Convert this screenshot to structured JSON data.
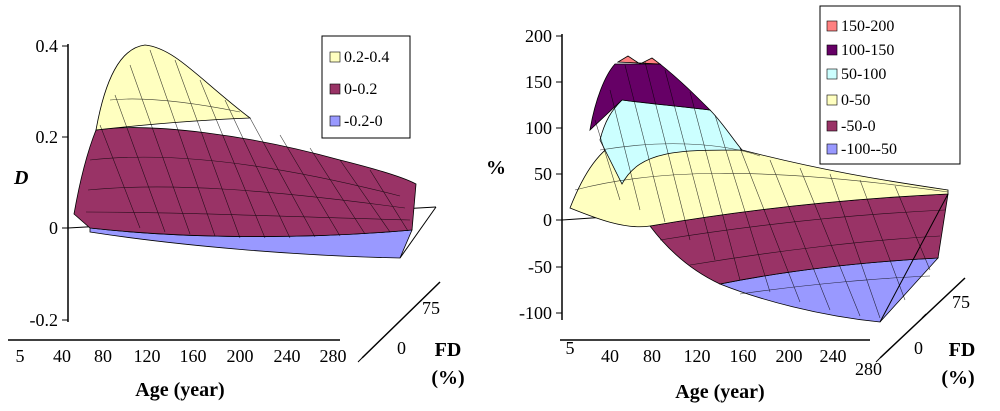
{
  "chart_data": [
    {
      "type": "surface",
      "title": "",
      "zlabel": "D",
      "xlabel": "Age (year)",
      "ylabel": "FD",
      "ylabel_unit": "(%)",
      "zlim": [
        -0.2,
        0.4
      ],
      "z_ticks": [
        "0.4",
        "0.2",
        "0",
        "-0.2"
      ],
      "x_ticks": [
        "5",
        "40",
        "80",
        "120",
        "160",
        "200",
        "240",
        "280"
      ],
      "y_ticks": [
        "0",
        "75"
      ],
      "legend": {
        "position": "top-right",
        "entries": [
          {
            "label": "0.2-0.4",
            "color": "#ffffc0"
          },
          {
            "label": "0-0.2",
            "color": "#993366"
          },
          {
            "label": "-0.2-0",
            "color": "#9999ff"
          }
        ]
      },
      "series": [
        {
          "x": [
            5,
            40,
            80,
            120,
            160,
            200,
            240,
            280
          ],
          "values": [
            0.02,
            0.34,
            0.4,
            0.32,
            0.26,
            0.2,
            0.15,
            0.1
          ]
        },
        {
          "x": [
            5,
            40,
            80,
            120,
            160,
            200,
            240,
            280
          ],
          "values": [
            0.0,
            0.02,
            0.01,
            -0.01,
            -0.02,
            -0.03,
            -0.03,
            -0.04
          ]
        }
      ]
    },
    {
      "type": "surface",
      "title": "",
      "zlabel": "%",
      "xlabel": "Age (year)",
      "ylabel": "FD",
      "ylabel_unit": "(%)",
      "zlim": [
        -100,
        200
      ],
      "z_ticks": [
        "200",
        "150",
        "100",
        "50",
        "0",
        "-50",
        "-100"
      ],
      "x_ticks": [
        "5",
        "40",
        "80",
        "120",
        "160",
        "200",
        "240",
        "280"
      ],
      "y_ticks": [
        "0",
        "75"
      ],
      "legend": {
        "position": "top-right",
        "entries": [
          {
            "label": "150-200",
            "color": "#ff8080"
          },
          {
            "label": "100-150",
            "color": "#660066"
          },
          {
            "label": "50-100",
            "color": "#ccffff"
          },
          {
            "label": "0-50",
            "color": "#ffffc0"
          },
          {
            "label": "-50-0",
            "color": "#993366"
          },
          {
            "label": "-100--50",
            "color": "#9999ff"
          }
        ]
      },
      "series": [
        {
          "x": [
            5,
            40,
            80,
            120,
            160,
            200,
            240,
            280
          ],
          "values": [
            5,
            150,
            165,
            95,
            60,
            45,
            35,
            30
          ]
        },
        {
          "x": [
            5,
            40,
            80,
            120,
            160,
            200,
            240,
            280
          ],
          "values": [
            0,
            -5,
            -30,
            -55,
            -70,
            -85,
            -95,
            -100
          ]
        }
      ]
    }
  ]
}
